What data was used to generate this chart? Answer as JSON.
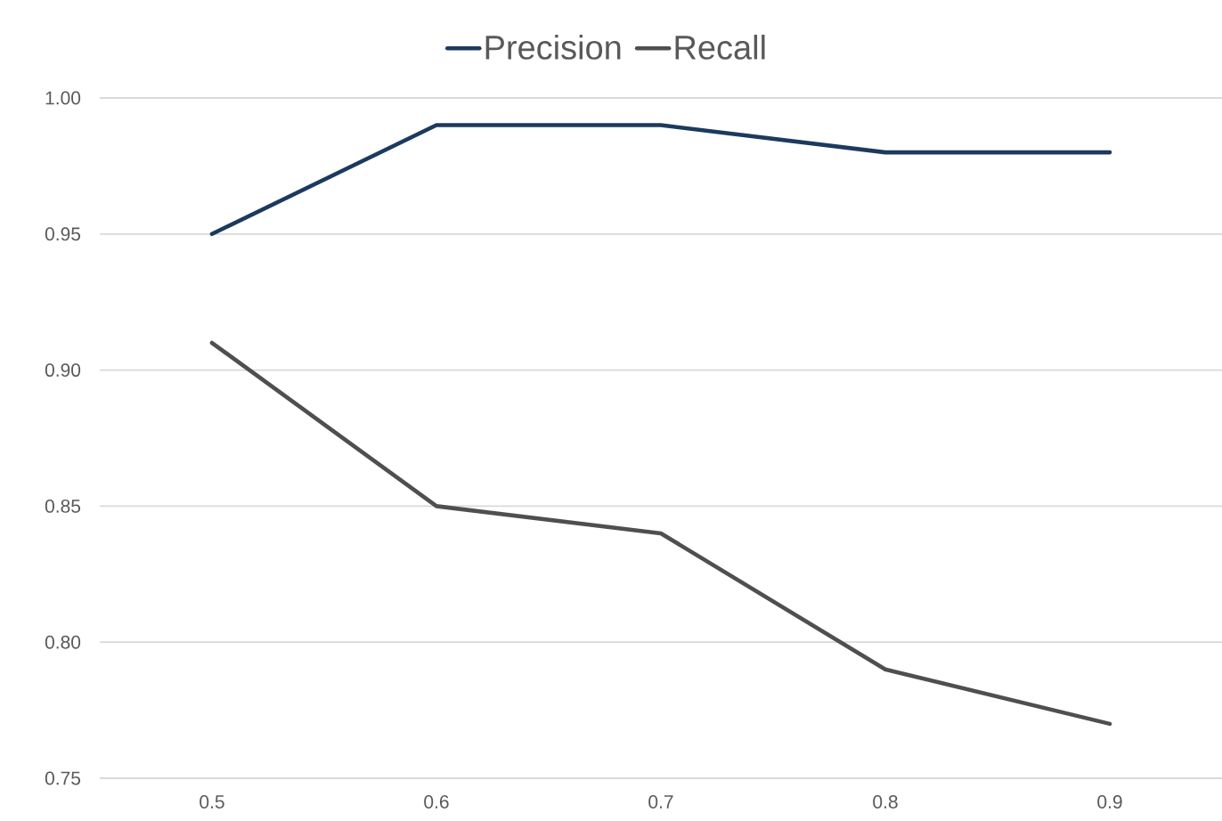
{
  "chart_data": {
    "type": "line",
    "categories": [
      "0.5",
      "0.6",
      "0.7",
      "0.8",
      "0.9"
    ],
    "series": [
      {
        "name": "Precision",
        "color": "#1c3a5e",
        "values": [
          0.95,
          0.99,
          0.99,
          0.98,
          0.98
        ]
      },
      {
        "name": "Recall",
        "color": "#4f4f4f",
        "values": [
          0.91,
          0.85,
          0.84,
          0.79,
          0.77
        ]
      }
    ],
    "ylim": [
      0.75,
      1.0
    ],
    "yticks": [
      {
        "value": 0.75,
        "label": "0.75"
      },
      {
        "value": 0.8,
        "label": "0.80"
      },
      {
        "value": 0.85,
        "label": "0.85"
      },
      {
        "value": 0.9,
        "label": "0.90"
      },
      {
        "value": 0.95,
        "label": "0.95"
      },
      {
        "value": 1.0,
        "label": "1.00"
      }
    ],
    "grid": "y",
    "legend": "top",
    "marker": "none",
    "line_style": "solid"
  }
}
